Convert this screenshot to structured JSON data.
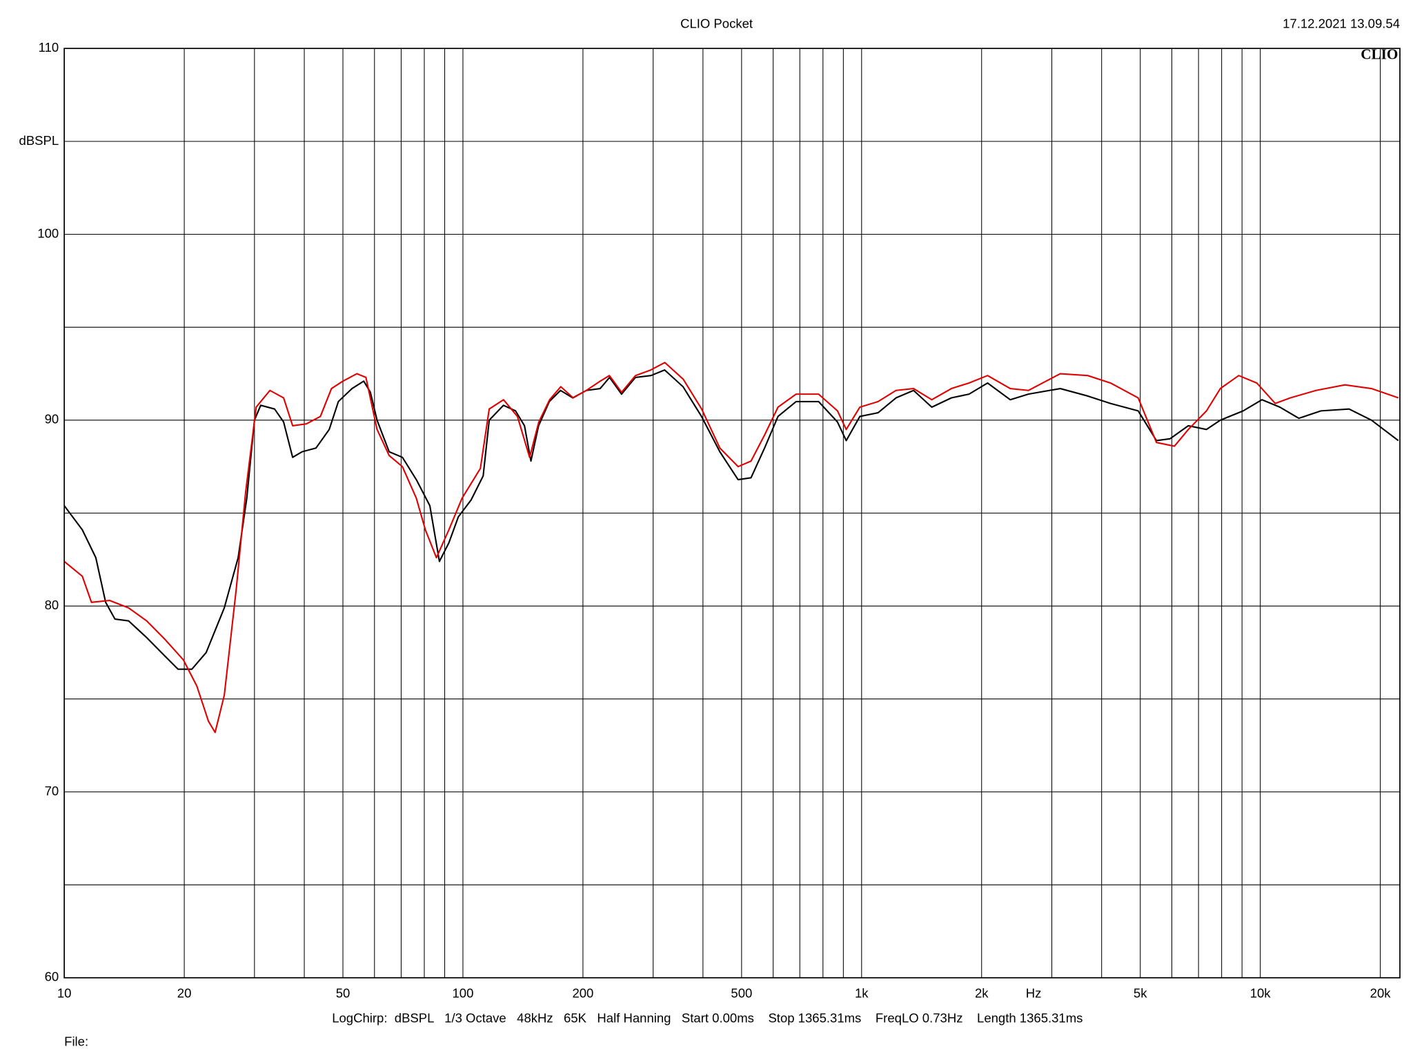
{
  "chart_data": {
    "type": "line",
    "title": "CLIO Pocket",
    "timestamp": "17.12.2021 13.09.54",
    "logo": "CLIO",
    "x_label": "Hz",
    "y_label": "dBSPL",
    "footer": "LogChirp:  dBSPL   1/3 Octave   48kHz   65K   Half Hanning   Start 0.00ms    Stop 1365.31ms    FreqLO 0.73Hz    Length 1365.31ms",
    "file_label": "File:",
    "xscale": "log",
    "grid": true,
    "xlim": [
      10,
      22400
    ],
    "ylim": [
      60,
      110
    ],
    "xticks": [
      10,
      20,
      50,
      100,
      200,
      500,
      {
        "value": 1000,
        "label": "1k"
      },
      {
        "value": 2000,
        "label": "2k"
      },
      {
        "value": 5000,
        "label": "5k"
      },
      {
        "value": 10000,
        "label": "10k"
      },
      {
        "value": 20000,
        "label": "20k"
      }
    ],
    "minor_xticks": [
      30,
      40,
      60,
      70,
      80,
      90,
      300,
      400,
      600,
      700,
      800,
      900,
      3000,
      4000,
      6000,
      7000,
      8000,
      9000
    ],
    "yticks": [
      60,
      70,
      80,
      90,
      100,
      110
    ],
    "minor_yticks": [
      65,
      75,
      85,
      95,
      105
    ],
    "series": [
      {
        "color": "#000000",
        "x": [
          10,
          11.1,
          12.0,
          12.7,
          13.4,
          14.5,
          16.1,
          17.9,
          19.3,
          20.9,
          22.7,
          25.2,
          27.3,
          28.7,
          30.0,
          31.1,
          33.7,
          35.5,
          37.4,
          39.5,
          42.8,
          46.2,
          48.7,
          52.7,
          56.4,
          58.6,
          60.9,
          65.3,
          70.5,
          76.4,
          82.6,
          87.3,
          92.2,
          97.4,
          104.8,
          112.4,
          116.4,
          126.4,
          135.5,
          142.7,
          148.1,
          154.8,
          164.7,
          175.7,
          188.5,
          204,
          220.9,
          233.2,
          250,
          270.8,
          296.3,
          320.6,
          356.5,
          396.7,
          441,
          490,
          528,
          571,
          617,
          685,
          780,
          870,
          915,
          990,
          1100,
          1220,
          1350,
          1500,
          1680,
          1860,
          2070,
          2360,
          2620,
          3150,
          3690,
          4210,
          4940,
          5490,
          5940,
          6600,
          7330,
          7940,
          9060,
          10100,
          11200,
          12500,
          14200,
          16700,
          19000,
          22200
        ],
        "values": [
          85.4,
          84.1,
          82.6,
          80.2,
          79.3,
          79.2,
          78.3,
          77.3,
          76.6,
          76.6,
          77.5,
          79.9,
          82.6,
          85.8,
          90.0,
          90.8,
          90.6,
          89.9,
          88.0,
          88.3,
          88.5,
          89.5,
          91.0,
          91.7,
          92.1,
          91.5,
          90.0,
          88.3,
          88.0,
          86.8,
          85.4,
          82.4,
          83.4,
          84.8,
          85.7,
          87.0,
          90.0,
          90.8,
          90.5,
          89.7,
          87.8,
          89.7,
          91.0,
          91.6,
          91.2,
          91.6,
          91.7,
          92.3,
          91.4,
          92.3,
          92.4,
          92.7,
          91.8,
          90.2,
          88.3,
          86.8,
          86.9,
          88.5,
          90.2,
          91.0,
          91.0,
          89.9,
          88.9,
          90.2,
          90.4,
          91.2,
          91.6,
          90.7,
          91.2,
          91.4,
          92.0,
          91.1,
          91.4,
          91.7,
          91.3,
          90.9,
          90.5,
          88.9,
          89.0,
          89.7,
          89.5,
          90.0,
          90.5,
          91.1,
          90.7,
          90.1,
          90.5,
          90.6,
          90.0,
          88.9
        ]
      },
      {
        "color": "#e00000",
        "x": [
          10,
          11.1,
          11.7,
          13.0,
          14.5,
          16.1,
          17.9,
          19.9,
          21.5,
          23.0,
          23.9,
          25.2,
          27.0,
          28.5,
          30.3,
          32.8,
          35.5,
          37.4,
          40.5,
          43.9,
          46.8,
          50.0,
          54.2,
          57.1,
          60.9,
          65.3,
          70.5,
          76.4,
          80.5,
          85.8,
          92.2,
          99.5,
          110.6,
          116.4,
          126.4,
          137,
          147,
          155,
          165,
          176,
          189,
          204,
          221,
          233,
          250,
          271,
          296,
          321,
          357,
          397,
          441,
          490,
          528,
          571,
          617,
          685,
          780,
          870,
          915,
          990,
          1100,
          1220,
          1350,
          1500,
          1680,
          1860,
          2070,
          2360,
          2620,
          3150,
          3690,
          4210,
          4940,
          5490,
          6090,
          6600,
          7330,
          7940,
          8830,
          9800,
          10900,
          11900,
          13800,
          16300,
          19000,
          22200
        ],
        "values": [
          82.4,
          81.6,
          80.2,
          80.3,
          79.9,
          79.2,
          78.2,
          77.1,
          75.7,
          73.8,
          73.2,
          75.2,
          80.9,
          86.1,
          90.7,
          91.6,
          91.2,
          89.7,
          89.8,
          90.2,
          91.7,
          92.1,
          92.5,
          92.3,
          89.5,
          88.1,
          87.5,
          85.8,
          84.1,
          82.6,
          84.1,
          85.8,
          87.4,
          90.6,
          91.1,
          90.2,
          88.0,
          89.9,
          91.1,
          91.8,
          91.2,
          91.6,
          92.1,
          92.4,
          91.5,
          92.4,
          92.7,
          93.1,
          92.2,
          90.6,
          88.5,
          87.5,
          87.8,
          89.2,
          90.7,
          91.4,
          91.4,
          90.5,
          89.5,
          90.7,
          91.0,
          91.6,
          91.7,
          91.1,
          91.7,
          92.0,
          92.4,
          91.7,
          91.6,
          92.5,
          92.4,
          92.0,
          91.2,
          88.8,
          88.6,
          89.5,
          90.5,
          91.7,
          92.4,
          92.0,
          90.9,
          91.2,
          91.6,
          91.9,
          91.7,
          91.2
        ]
      }
    ]
  }
}
